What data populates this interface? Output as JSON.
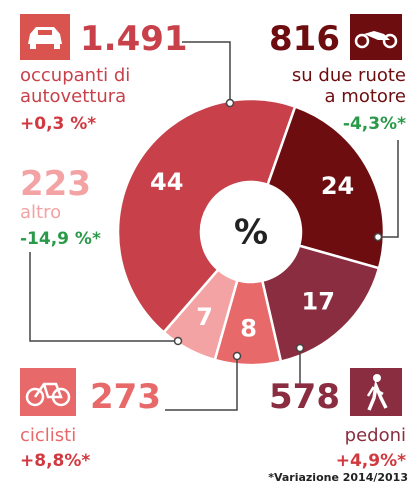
{
  "chart_data": {
    "type": "pie",
    "donut": true,
    "center_label": "%",
    "categories": [
      "occupanti di\nautovettura",
      "su due ruote\na motore",
      "pedoni",
      "ciclisti",
      "altro"
    ],
    "values": [
      44,
      24,
      17,
      8,
      7
    ],
    "colors": [
      "#c8414a",
      "#6e0d10",
      "#8a2d40",
      "#e8696a",
      "#f3a3a3"
    ],
    "counts": [
      "1.491",
      "816",
      "578",
      "273",
      "223"
    ],
    "changes": [
      "+0,3 %*",
      "-4,3%*",
      "+4,9%*",
      "+8,8%*",
      "-14,9 %*"
    ],
    "footnote": "*Variazione 2014/2013"
  }
}
